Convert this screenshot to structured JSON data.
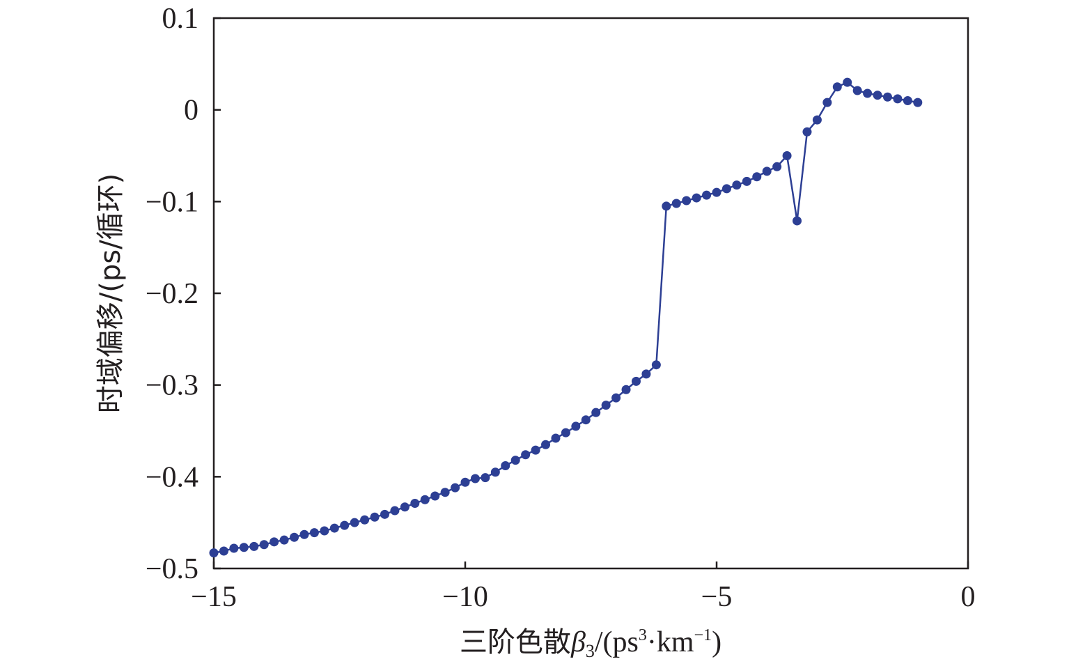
{
  "chart_data": {
    "type": "line",
    "xlabel": "三阶色散β3/(ps3·km−1)",
    "xlabel_parts": {
      "main": "三阶色散",
      "beta": "β",
      "beta_sub": "3",
      "unit_open": "/(ps",
      "unit_sup1": "3",
      "unit_mid": "·km",
      "unit_sup2": "−1",
      "unit_close": ")"
    },
    "ylabel": "时域偏移/(ps/循环)",
    "xlim": [
      -15,
      0
    ],
    "ylim": [
      -0.5,
      0.1
    ],
    "x_ticks": [
      {
        "value": -15,
        "label": "−15"
      },
      {
        "value": -10,
        "label": "−10"
      },
      {
        "value": -5,
        "label": "−5"
      },
      {
        "value": 0,
        "label": "0"
      }
    ],
    "y_ticks": [
      {
        "value": 0.1,
        "label": "0.1"
      },
      {
        "value": 0,
        "label": "0"
      },
      {
        "value": -0.1,
        "label": "−0.1"
      },
      {
        "value": -0.2,
        "label": "−0.2"
      },
      {
        "value": -0.3,
        "label": "−0.3"
      },
      {
        "value": -0.4,
        "label": "−0.4"
      },
      {
        "value": -0.5,
        "label": "−0.5"
      }
    ],
    "grid": false,
    "line_color": "#2d3f94",
    "series": [
      {
        "x": [
          -15.0,
          -14.8,
          -14.6,
          -14.4,
          -14.2,
          -14.0,
          -13.8,
          -13.6,
          -13.4,
          -13.2,
          -13.0,
          -12.8,
          -12.6,
          -12.4,
          -12.2,
          -12.0,
          -11.8,
          -11.6,
          -11.4,
          -11.2,
          -11.0,
          -10.8,
          -10.6,
          -10.4,
          -10.2,
          -10.0,
          -9.8,
          -9.6,
          -9.4,
          -9.2,
          -9.0,
          -8.8,
          -8.6,
          -8.4,
          -8.2,
          -8.0,
          -7.8,
          -7.6,
          -7.4,
          -7.2,
          -7.0,
          -6.8,
          -6.6,
          -6.4,
          -6.2,
          -6.0,
          -5.8,
          -5.6,
          -5.4,
          -5.2,
          -5.0,
          -4.8,
          -4.6,
          -4.4,
          -4.2,
          -4.0,
          -3.8,
          -3.6,
          -3.4,
          -3.2,
          -3.0,
          -2.8,
          -2.6,
          -2.4,
          -2.2,
          -2.0,
          -1.8,
          -1.6,
          -1.4,
          -1.2,
          -1.0
        ],
        "y": [
          -0.483,
          -0.481,
          -0.478,
          -0.477,
          -0.476,
          -0.474,
          -0.471,
          -0.469,
          -0.466,
          -0.463,
          -0.461,
          -0.459,
          -0.456,
          -0.453,
          -0.45,
          -0.447,
          -0.444,
          -0.441,
          -0.437,
          -0.433,
          -0.429,
          -0.425,
          -0.421,
          -0.417,
          -0.412,
          -0.406,
          -0.402,
          -0.401,
          -0.395,
          -0.388,
          -0.382,
          -0.376,
          -0.371,
          -0.365,
          -0.358,
          -0.352,
          -0.345,
          -0.338,
          -0.33,
          -0.322,
          -0.314,
          -0.305,
          -0.296,
          -0.288,
          -0.278,
          -0.105,
          -0.102,
          -0.099,
          -0.096,
          -0.093,
          -0.09,
          -0.086,
          -0.082,
          -0.078,
          -0.073,
          -0.067,
          -0.062,
          -0.05,
          -0.121,
          -0.024,
          -0.011,
          0.008,
          0.025,
          0.03,
          0.021,
          0.018,
          0.016,
          0.014,
          0.012,
          0.01,
          0.008
        ]
      }
    ]
  }
}
